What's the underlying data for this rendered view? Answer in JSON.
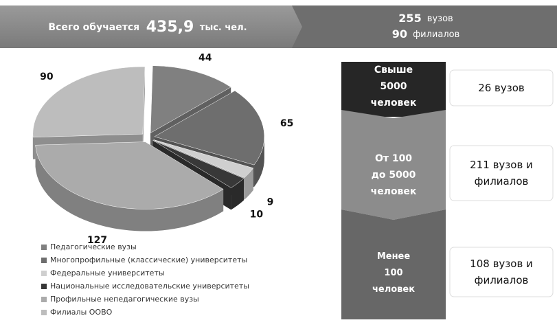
{
  "header": {
    "left": {
      "prefix": "Всего обучается",
      "number": "435,9",
      "unit": "тыс. чел."
    },
    "right": {
      "line1_number": "255",
      "line1_unit": "вузов",
      "line2_number": "90",
      "line2_unit": "филиалов"
    }
  },
  "chart_data": {
    "type": "pie",
    "categories": [
      "Педагогические вузы",
      "Многопрофильные (классические) университеты",
      "Федеральные университеты",
      "Национальные исследовательские университеты",
      "Профильные непедагогические вузы",
      "Филиалы ООВО"
    ],
    "values": [
      44,
      65,
      9,
      10,
      127,
      90
    ],
    "colors": [
      "#808080",
      "#6e6e6e",
      "#cfcfcf",
      "#383838",
      "#ababab",
      "#bdbdbd"
    ]
  },
  "groups": [
    {
      "label": "Свыше 5000 человек",
      "count": "26 вузов"
    },
    {
      "label": "От 100 до 5000 человек",
      "count": "211 вузов и филиалов"
    },
    {
      "label": "Менее 100 человек",
      "count": "108 вузов и филиалов"
    }
  ]
}
